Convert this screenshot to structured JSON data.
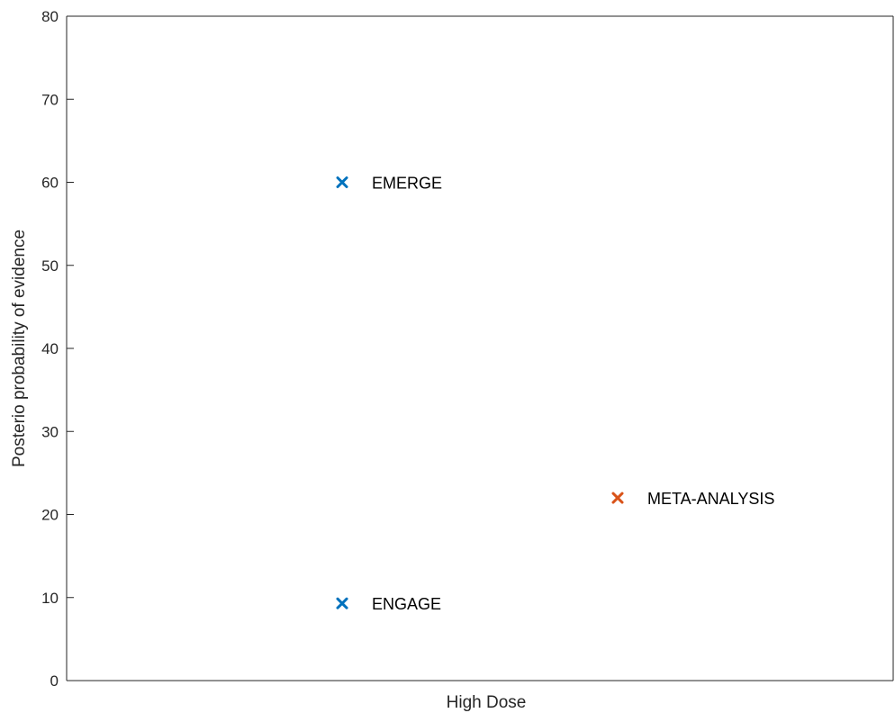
{
  "chart_data": {
    "type": "scatter",
    "title": "",
    "xlabel": "High Dose",
    "ylabel": "Posterio probability of evidence",
    "ylim": [
      0,
      80
    ],
    "yticks": [
      0,
      10,
      20,
      30,
      40,
      50,
      60,
      70,
      80
    ],
    "xlim": [
      0,
      3
    ],
    "grid": false,
    "legend": "none",
    "marker": "x",
    "colors": {
      "blue": "#0072BD",
      "orange": "#D95319",
      "axis": "#262626"
    },
    "points": [
      {
        "label": "EMERGE",
        "x": 1,
        "y": 60,
        "color": "#0072BD"
      },
      {
        "label": "ENGAGE",
        "x": 1,
        "y": 9.3,
        "color": "#0072BD"
      },
      {
        "label": "META-ANALYSIS",
        "x": 2,
        "y": 22,
        "color": "#D95319"
      }
    ]
  }
}
